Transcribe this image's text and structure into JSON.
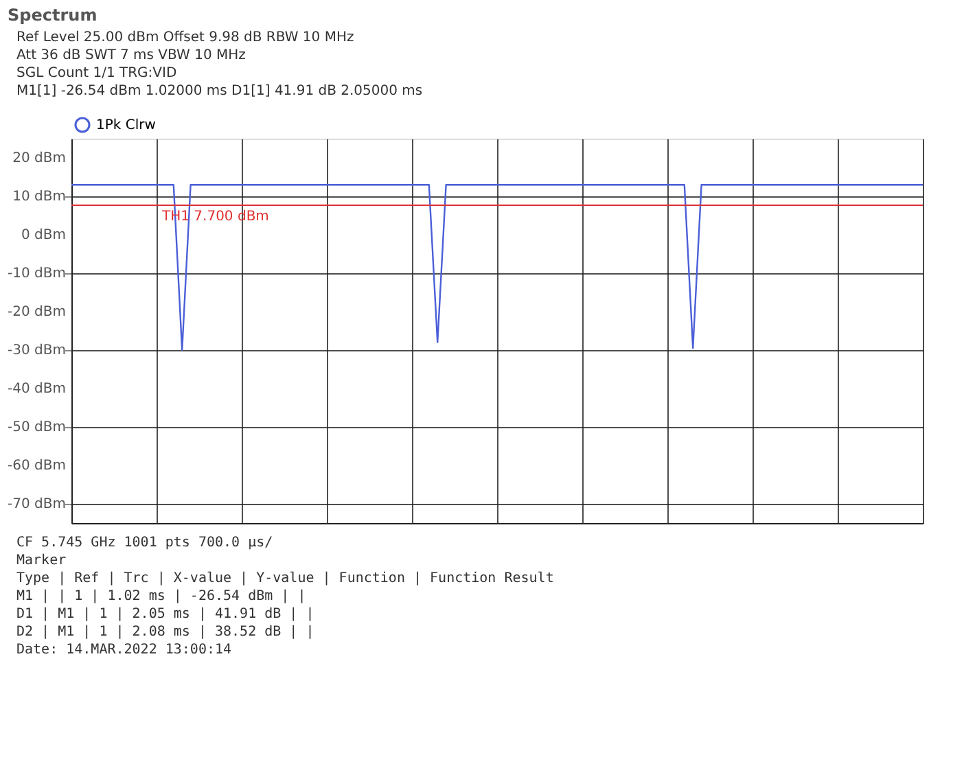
{
  "chart_data": {
    "type": "line",
    "title": "Spectrum",
    "categories": [
      null,
      null,
      null,
      null,
      null,
      null,
      null,
      null,
      null,
      null,
      null,
      null,
      null,
      null,
      null,
      null,
      null,
      null,
      null,
      null,
      null,
      null,
      null,
      null,
      null,
      null,
      null,
      null,
      null,
      null,
      null,
      null,
      null,
      null,
      null,
      null,
      null,
      null,
      null,
      null,
      null,
      null,
      null,
      null,
      null,
      null,
      null,
      null,
      null,
      null,
      null,
      null,
      null,
      null,
      null,
      null,
      null,
      null,
      null,
      null,
      null,
      null,
      null,
      null,
      null,
      null,
      null,
      null,
      null,
      null,
      null,
      null,
      null,
      null,
      null,
      null,
      null,
      null,
      null,
      null,
      null,
      null,
      null,
      null,
      null,
      null,
      null,
      null,
      null,
      null,
      null,
      null,
      null,
      null,
      null,
      null,
      null,
      null,
      null,
      null,
      null
    ],
    "series": [
      {
        "name": "1Pk Clrw",
        "color": "#4a5fd8",
        "values": [
          13,
          13,
          13,
          13,
          13,
          13,
          13,
          13,
          13,
          13,
          13,
          13,
          13,
          -30,
          13,
          13,
          13,
          13,
          13,
          13,
          13,
          13,
          13,
          13,
          13,
          13,
          13,
          13,
          13,
          13,
          13,
          13,
          13,
          13,
          13,
          13,
          13,
          13,
          13,
          13,
          13,
          13,
          13,
          -28,
          13,
          13,
          13,
          13,
          13,
          13,
          13,
          13,
          13,
          13,
          13,
          13,
          13,
          13,
          13,
          13,
          13,
          13,
          13,
          13,
          13,
          13,
          13,
          13,
          13,
          13,
          13,
          13,
          13,
          -29.5,
          13,
          13,
          13,
          13,
          13,
          13,
          13,
          13,
          13,
          13,
          13,
          13,
          13,
          13,
          13,
          13,
          13,
          13,
          13,
          13,
          13,
          13,
          13,
          13,
          13,
          13,
          13
        ]
      }
    ],
    "ylim": [
      -75,
      25
    ],
    "yticks": [
      {
        "value": 20,
        "label": "20 dBm"
      },
      {
        "value": 10,
        "label": "10 dBm"
      },
      {
        "value": 0,
        "label": "0 dBm"
      },
      {
        "value": -10,
        "label": "-10 dBm"
      },
      {
        "value": -20,
        "label": "-20 dBm"
      },
      {
        "value": -30,
        "label": "-30 dBm"
      },
      {
        "value": -40,
        "label": "-40 dBm"
      },
      {
        "value": -50,
        "label": "-50 dBm"
      },
      {
        "value": -60,
        "label": "-60 dBm"
      },
      {
        "value": -70,
        "label": "-70 dBm"
      }
    ],
    "grid": true,
    "legend": "top left",
    "marker": "none",
    "line_style": "solid",
    "ref_lines": [
      {
        "axis": "y",
        "value": 7.7,
        "label": "TH1 7.700 dBm",
        "color": "#e03030"
      }
    ],
    "annotations": [
      "Ref Level 25.00 dBm     Offset 9.98 dB     RBW 10 MHz",
      "Att 36 dB     SWT 7 ms     VBW 10 MHz",
      "SGL Count 1/1     TRG:VID",
      "M1[1]  -26.54 dBm  1.02000 ms     D1[1]  41.91 dB  2.05000 ms",
      "CF 5.745 GHz                    1001 pts                    700.0 µs/",
      "Marker",
      "Type | Ref | Trc |   X-value  |   Y-value   | Function | Function Result",
      " M1  |     |  1  |    1.02 ms | -26.54 dBm  |          |",
      " D1  |  M1 |  1  |    2.05 ms |  41.91 dB   |          |",
      " D2  |  M1 |  1  |    2.08 ms |  38.52 dB   |          |",
      "Date: 14.MAR.2022 13:00:14"
    ]
  }
}
